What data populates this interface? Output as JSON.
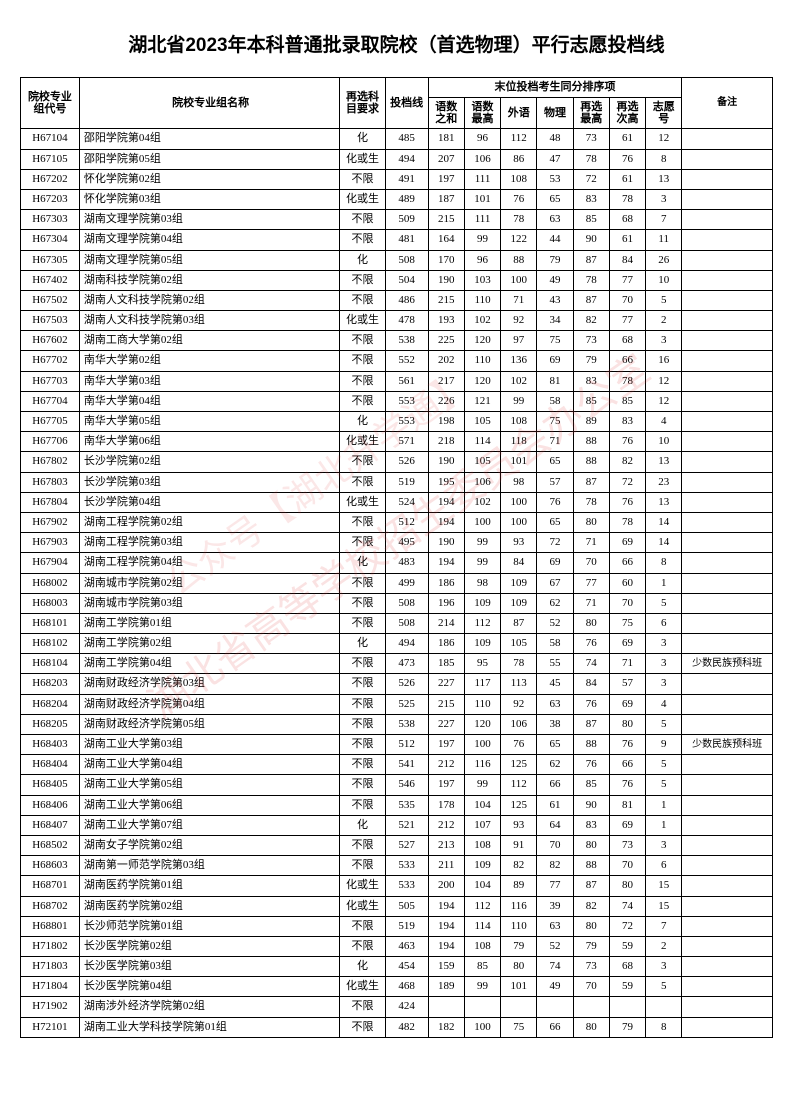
{
  "title": "湖北省2023年本科普通批录取院校（首选物理）平行志愿投档线",
  "watermark1": "湖北省高等学校招生委员会办公室",
  "watermark2": "公众号【湖北升学通】",
  "headers": {
    "code": "院校专业组代号",
    "name": "院校专业组名称",
    "req": "再选科目要求",
    "score": "投档线",
    "tiebreak": "末位投档考生同分排序项",
    "sub1": "语数之和",
    "sub2": "语数最高",
    "sub3": "外语",
    "sub4": "物理",
    "sub5": "再选最高",
    "sub6": "再选次高",
    "sub7": "志愿号",
    "note": "备注"
  },
  "note_preparatory": "少数民族预科班",
  "rows": [
    {
      "code": "H67104",
      "name": "邵阳学院第04组",
      "req": "化",
      "score": "485",
      "c1": "181",
      "c2": "96",
      "c3": "112",
      "c4": "48",
      "c5": "73",
      "c6": "61",
      "c7": "12",
      "note": ""
    },
    {
      "code": "H67105",
      "name": "邵阳学院第05组",
      "req": "化或生",
      "score": "494",
      "c1": "207",
      "c2": "106",
      "c3": "86",
      "c4": "47",
      "c5": "78",
      "c6": "76",
      "c7": "8",
      "note": ""
    },
    {
      "code": "H67202",
      "name": "怀化学院第02组",
      "req": "不限",
      "score": "491",
      "c1": "197",
      "c2": "111",
      "c3": "108",
      "c4": "53",
      "c5": "72",
      "c6": "61",
      "c7": "13",
      "note": ""
    },
    {
      "code": "H67203",
      "name": "怀化学院第03组",
      "req": "化或生",
      "score": "489",
      "c1": "187",
      "c2": "101",
      "c3": "76",
      "c4": "65",
      "c5": "83",
      "c6": "78",
      "c7": "3",
      "note": ""
    },
    {
      "code": "H67303",
      "name": "湖南文理学院第03组",
      "req": "不限",
      "score": "509",
      "c1": "215",
      "c2": "111",
      "c3": "78",
      "c4": "63",
      "c5": "85",
      "c6": "68",
      "c7": "7",
      "note": ""
    },
    {
      "code": "H67304",
      "name": "湖南文理学院第04组",
      "req": "不限",
      "score": "481",
      "c1": "164",
      "c2": "99",
      "c3": "122",
      "c4": "44",
      "c5": "90",
      "c6": "61",
      "c7": "11",
      "note": ""
    },
    {
      "code": "H67305",
      "name": "湖南文理学院第05组",
      "req": "化",
      "score": "508",
      "c1": "170",
      "c2": "96",
      "c3": "88",
      "c4": "79",
      "c5": "87",
      "c6": "84",
      "c7": "26",
      "note": ""
    },
    {
      "code": "H67402",
      "name": "湖南科技学院第02组",
      "req": "不限",
      "score": "504",
      "c1": "190",
      "c2": "103",
      "c3": "100",
      "c4": "49",
      "c5": "78",
      "c6": "77",
      "c7": "10",
      "note": ""
    },
    {
      "code": "H67502",
      "name": "湖南人文科技学院第02组",
      "req": "不限",
      "score": "486",
      "c1": "215",
      "c2": "110",
      "c3": "71",
      "c4": "43",
      "c5": "87",
      "c6": "70",
      "c7": "5",
      "note": ""
    },
    {
      "code": "H67503",
      "name": "湖南人文科技学院第03组",
      "req": "化或生",
      "score": "478",
      "c1": "193",
      "c2": "102",
      "c3": "92",
      "c4": "34",
      "c5": "82",
      "c6": "77",
      "c7": "2",
      "note": ""
    },
    {
      "code": "H67602",
      "name": "湖南工商大学第02组",
      "req": "不限",
      "score": "538",
      "c1": "225",
      "c2": "120",
      "c3": "97",
      "c4": "75",
      "c5": "73",
      "c6": "68",
      "c7": "3",
      "note": ""
    },
    {
      "code": "H67702",
      "name": "南华大学第02组",
      "req": "不限",
      "score": "552",
      "c1": "202",
      "c2": "110",
      "c3": "136",
      "c4": "69",
      "c5": "79",
      "c6": "66",
      "c7": "16",
      "note": ""
    },
    {
      "code": "H67703",
      "name": "南华大学第03组",
      "req": "不限",
      "score": "561",
      "c1": "217",
      "c2": "120",
      "c3": "102",
      "c4": "81",
      "c5": "83",
      "c6": "78",
      "c7": "12",
      "note": ""
    },
    {
      "code": "H67704",
      "name": "南华大学第04组",
      "req": "不限",
      "score": "553",
      "c1": "226",
      "c2": "121",
      "c3": "99",
      "c4": "58",
      "c5": "85",
      "c6": "85",
      "c7": "12",
      "note": ""
    },
    {
      "code": "H67705",
      "name": "南华大学第05组",
      "req": "化",
      "score": "553",
      "c1": "198",
      "c2": "105",
      "c3": "108",
      "c4": "75",
      "c5": "89",
      "c6": "83",
      "c7": "4",
      "note": ""
    },
    {
      "code": "H67706",
      "name": "南华大学第06组",
      "req": "化或生",
      "score": "571",
      "c1": "218",
      "c2": "114",
      "c3": "118",
      "c4": "71",
      "c5": "88",
      "c6": "76",
      "c7": "10",
      "note": ""
    },
    {
      "code": "H67802",
      "name": "长沙学院第02组",
      "req": "不限",
      "score": "526",
      "c1": "190",
      "c2": "105",
      "c3": "101",
      "c4": "65",
      "c5": "88",
      "c6": "82",
      "c7": "13",
      "note": ""
    },
    {
      "code": "H67803",
      "name": "长沙学院第03组",
      "req": "不限",
      "score": "519",
      "c1": "195",
      "c2": "106",
      "c3": "98",
      "c4": "57",
      "c5": "87",
      "c6": "72",
      "c7": "23",
      "note": ""
    },
    {
      "code": "H67804",
      "name": "长沙学院第04组",
      "req": "化或生",
      "score": "524",
      "c1": "194",
      "c2": "102",
      "c3": "100",
      "c4": "76",
      "c5": "78",
      "c6": "76",
      "c7": "13",
      "note": ""
    },
    {
      "code": "H67902",
      "name": "湖南工程学院第02组",
      "req": "不限",
      "score": "512",
      "c1": "194",
      "c2": "100",
      "c3": "100",
      "c4": "65",
      "c5": "80",
      "c6": "78",
      "c7": "14",
      "note": ""
    },
    {
      "code": "H67903",
      "name": "湖南工程学院第03组",
      "req": "不限",
      "score": "495",
      "c1": "190",
      "c2": "99",
      "c3": "93",
      "c4": "72",
      "c5": "71",
      "c6": "69",
      "c7": "14",
      "note": ""
    },
    {
      "code": "H67904",
      "name": "湖南工程学院第04组",
      "req": "化",
      "score": "483",
      "c1": "194",
      "c2": "99",
      "c3": "84",
      "c4": "69",
      "c5": "70",
      "c6": "66",
      "c7": "8",
      "note": ""
    },
    {
      "code": "H68002",
      "name": "湖南城市学院第02组",
      "req": "不限",
      "score": "499",
      "c1": "186",
      "c2": "98",
      "c3": "109",
      "c4": "67",
      "c5": "77",
      "c6": "60",
      "c7": "1",
      "note": ""
    },
    {
      "code": "H68003",
      "name": "湖南城市学院第03组",
      "req": "不限",
      "score": "508",
      "c1": "196",
      "c2": "109",
      "c3": "109",
      "c4": "62",
      "c5": "71",
      "c6": "70",
      "c7": "5",
      "note": ""
    },
    {
      "code": "H68101",
      "name": "湖南工学院第01组",
      "req": "不限",
      "score": "508",
      "c1": "214",
      "c2": "112",
      "c3": "87",
      "c4": "52",
      "c5": "80",
      "c6": "75",
      "c7": "6",
      "note": ""
    },
    {
      "code": "H68102",
      "name": "湖南工学院第02组",
      "req": "化",
      "score": "494",
      "c1": "186",
      "c2": "109",
      "c3": "105",
      "c4": "58",
      "c5": "76",
      "c6": "69",
      "c7": "3",
      "note": ""
    },
    {
      "code": "H68104",
      "name": "湖南工学院第04组",
      "req": "不限",
      "score": "473",
      "c1": "185",
      "c2": "95",
      "c3": "78",
      "c4": "55",
      "c5": "74",
      "c6": "71",
      "c7": "3",
      "note": "少数民族预科班"
    },
    {
      "code": "H68203",
      "name": "湖南财政经济学院第03组",
      "req": "不限",
      "score": "526",
      "c1": "227",
      "c2": "117",
      "c3": "113",
      "c4": "45",
      "c5": "84",
      "c6": "57",
      "c7": "3",
      "note": ""
    },
    {
      "code": "H68204",
      "name": "湖南财政经济学院第04组",
      "req": "不限",
      "score": "525",
      "c1": "215",
      "c2": "110",
      "c3": "92",
      "c4": "63",
      "c5": "76",
      "c6": "69",
      "c7": "4",
      "note": ""
    },
    {
      "code": "H68205",
      "name": "湖南财政经济学院第05组",
      "req": "不限",
      "score": "538",
      "c1": "227",
      "c2": "120",
      "c3": "106",
      "c4": "38",
      "c5": "87",
      "c6": "80",
      "c7": "5",
      "note": ""
    },
    {
      "code": "H68403",
      "name": "湖南工业大学第03组",
      "req": "不限",
      "score": "512",
      "c1": "197",
      "c2": "100",
      "c3": "76",
      "c4": "65",
      "c5": "88",
      "c6": "76",
      "c7": "9",
      "note": "少数民族预科班"
    },
    {
      "code": "H68404",
      "name": "湖南工业大学第04组",
      "req": "不限",
      "score": "541",
      "c1": "212",
      "c2": "116",
      "c3": "125",
      "c4": "62",
      "c5": "76",
      "c6": "66",
      "c7": "5",
      "note": ""
    },
    {
      "code": "H68405",
      "name": "湖南工业大学第05组",
      "req": "不限",
      "score": "546",
      "c1": "197",
      "c2": "99",
      "c3": "112",
      "c4": "66",
      "c5": "85",
      "c6": "76",
      "c7": "5",
      "note": ""
    },
    {
      "code": "H68406",
      "name": "湖南工业大学第06组",
      "req": "不限",
      "score": "535",
      "c1": "178",
      "c2": "104",
      "c3": "125",
      "c4": "61",
      "c5": "90",
      "c6": "81",
      "c7": "1",
      "note": ""
    },
    {
      "code": "H68407",
      "name": "湖南工业大学第07组",
      "req": "化",
      "score": "521",
      "c1": "212",
      "c2": "107",
      "c3": "93",
      "c4": "64",
      "c5": "83",
      "c6": "69",
      "c7": "1",
      "note": ""
    },
    {
      "code": "H68502",
      "name": "湖南女子学院第02组",
      "req": "不限",
      "score": "527",
      "c1": "213",
      "c2": "108",
      "c3": "91",
      "c4": "70",
      "c5": "80",
      "c6": "73",
      "c7": "3",
      "note": ""
    },
    {
      "code": "H68603",
      "name": "湖南第一师范学院第03组",
      "req": "不限",
      "score": "533",
      "c1": "211",
      "c2": "109",
      "c3": "82",
      "c4": "82",
      "c5": "88",
      "c6": "70",
      "c7": "6",
      "note": ""
    },
    {
      "code": "H68701",
      "name": "湖南医药学院第01组",
      "req": "化或生",
      "score": "533",
      "c1": "200",
      "c2": "104",
      "c3": "89",
      "c4": "77",
      "c5": "87",
      "c6": "80",
      "c7": "15",
      "note": ""
    },
    {
      "code": "H68702",
      "name": "湖南医药学院第02组",
      "req": "化或生",
      "score": "505",
      "c1": "194",
      "c2": "112",
      "c3": "116",
      "c4": "39",
      "c5": "82",
      "c6": "74",
      "c7": "15",
      "note": ""
    },
    {
      "code": "H68801",
      "name": "长沙师范学院第01组",
      "req": "不限",
      "score": "519",
      "c1": "194",
      "c2": "114",
      "c3": "110",
      "c4": "63",
      "c5": "80",
      "c6": "72",
      "c7": "7",
      "note": ""
    },
    {
      "code": "H71802",
      "name": "长沙医学院第02组",
      "req": "不限",
      "score": "463",
      "c1": "194",
      "c2": "108",
      "c3": "79",
      "c4": "52",
      "c5": "79",
      "c6": "59",
      "c7": "2",
      "note": ""
    },
    {
      "code": "H71803",
      "name": "长沙医学院第03组",
      "req": "化",
      "score": "454",
      "c1": "159",
      "c2": "85",
      "c3": "80",
      "c4": "74",
      "c5": "73",
      "c6": "68",
      "c7": "3",
      "note": ""
    },
    {
      "code": "H71804",
      "name": "长沙医学院第04组",
      "req": "化或生",
      "score": "468",
      "c1": "189",
      "c2": "99",
      "c3": "101",
      "c4": "49",
      "c5": "70",
      "c6": "59",
      "c7": "5",
      "note": ""
    },
    {
      "code": "H71902",
      "name": "湖南涉外经济学院第02组",
      "req": "不限",
      "score": "424",
      "c1": "",
      "c2": "",
      "c3": "",
      "c4": "",
      "c5": "",
      "c6": "",
      "c7": "",
      "note": ""
    },
    {
      "code": "H72101",
      "name": "湖南工业大学科技学院第01组",
      "req": "不限",
      "score": "482",
      "c1": "182",
      "c2": "100",
      "c3": "75",
      "c4": "66",
      "c5": "80",
      "c6": "79",
      "c7": "8",
      "note": ""
    }
  ]
}
